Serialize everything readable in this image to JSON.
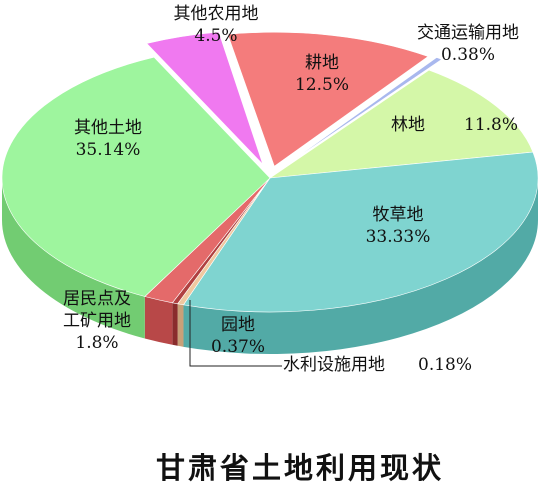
{
  "chart_data": {
    "type": "pie",
    "title": "甘肃省土地利用现状",
    "slices": [
      {
        "key": "cultivated",
        "label": "耕地",
        "value": 12.5,
        "value_text": "12.5%",
        "color": "#f47c7c",
        "side": "#c95656",
        "exploded": true
      },
      {
        "key": "transport",
        "label": "交通运输用地",
        "value": 0.38,
        "value_text": "0.38%",
        "color": "#a9b8ee",
        "side": "#7f8fcc",
        "exploded": true
      },
      {
        "key": "forest",
        "label": "林地",
        "value": 11.8,
        "value_text": "11.8%",
        "color": "#d4f7a8",
        "side": "#aad47d",
        "exploded": false
      },
      {
        "key": "grassland",
        "label": "牧草地",
        "value": 33.33,
        "value_text": "33.33%",
        "color": "#7fd4d0",
        "side": "#52aaa6",
        "exploded": false
      },
      {
        "key": "garden",
        "label": "园地",
        "value": 0.37,
        "value_text": "0.37%",
        "color": "#f0c8a0",
        "side": "#c8a078",
        "exploded": false
      },
      {
        "key": "water",
        "label": "水利设施用地",
        "value": 0.18,
        "value_text": "0.18%",
        "color": "#b04040",
        "side": "#8a2c2c",
        "exploded": false
      },
      {
        "key": "settlement",
        "label": "居民点及工矿用地",
        "label_lines": [
          "居民点及",
          "工矿用地"
        ],
        "value": 1.8,
        "value_text": "1.8%",
        "color": "#e46a6a",
        "side": "#b84848",
        "exploded": false
      },
      {
        "key": "other_land",
        "label": "其他土地",
        "value": 35.14,
        "value_text": "35.14%",
        "color": "#9ef59e",
        "side": "#72cc72",
        "exploded": false
      },
      {
        "key": "other_agri",
        "label": "其他农用地",
        "value": 4.5,
        "value_text": "4.5%",
        "color": "#f079f0",
        "side": "#c455c4",
        "exploded": true
      }
    ]
  }
}
